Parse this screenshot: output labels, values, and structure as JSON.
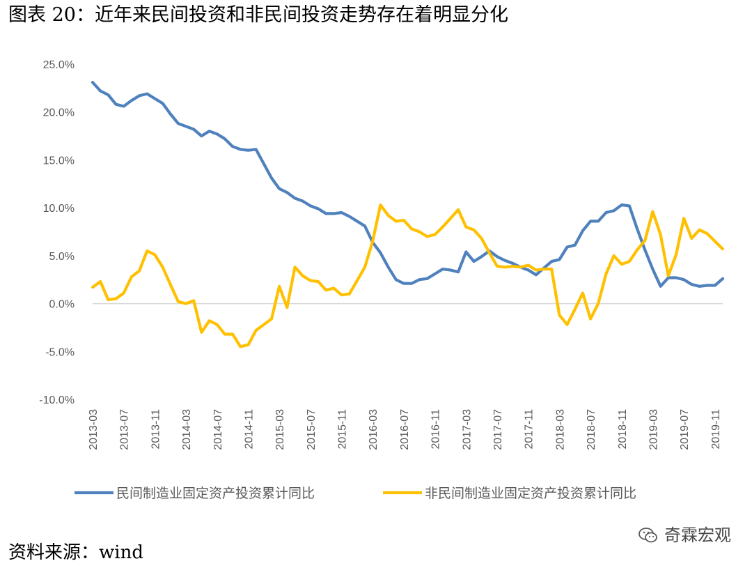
{
  "page": {
    "title": "图表 20：近年来民间投资和非民间投资走势存在着明显分化",
    "source": "资料来源：wind",
    "watermark": "奇霖宏观"
  },
  "chart_data": {
    "type": "line",
    "title": "",
    "xlabel": "",
    "ylabel": "",
    "ylim": [
      -10,
      25
    ],
    "y_ticks": [
      "25.0%",
      "20.0%",
      "15.0%",
      "10.0%",
      "5.0%",
      "0.0%",
      "-5.0%",
      "-10.0%"
    ],
    "x_tick_labels": [
      "2013-03",
      "2013-07",
      "2013-11",
      "2014-03",
      "2014-07",
      "2014-11",
      "2015-03",
      "2015-07",
      "2015-11",
      "2016-03",
      "2016-07",
      "2016-11",
      "2017-03",
      "2017-07",
      "2017-11",
      "2018-03",
      "2018-07",
      "2018-11",
      "2019-03",
      "2019-07",
      "2019-11"
    ],
    "x": [
      "2013-03",
      "2013-04",
      "2013-05",
      "2013-06",
      "2013-07",
      "2013-08",
      "2013-09",
      "2013-10",
      "2013-11",
      "2013-12",
      "2014-01",
      "2014-02",
      "2014-03",
      "2014-04",
      "2014-05",
      "2014-06",
      "2014-07",
      "2014-08",
      "2014-09",
      "2014-10",
      "2014-11",
      "2014-12",
      "2015-01",
      "2015-02",
      "2015-03",
      "2015-04",
      "2015-05",
      "2015-06",
      "2015-07",
      "2015-08",
      "2015-09",
      "2015-10",
      "2015-11",
      "2015-12",
      "2016-01",
      "2016-02",
      "2016-03",
      "2016-04",
      "2016-05",
      "2016-06",
      "2016-07",
      "2016-08",
      "2016-09",
      "2016-10",
      "2016-11",
      "2016-12",
      "2017-01",
      "2017-02",
      "2017-03",
      "2017-04",
      "2017-05",
      "2017-06",
      "2017-07",
      "2017-08",
      "2017-09",
      "2017-10",
      "2017-11",
      "2017-12",
      "2018-01",
      "2018-02",
      "2018-03",
      "2018-04",
      "2018-05",
      "2018-06",
      "2018-07",
      "2018-08",
      "2018-09",
      "2018-10",
      "2018-11",
      "2018-12",
      "2019-01",
      "2019-02",
      "2019-03",
      "2019-04",
      "2019-05",
      "2019-06",
      "2019-07",
      "2019-08",
      "2019-09",
      "2019-10",
      "2019-11",
      "2019-12"
    ],
    "series": [
      {
        "name": "民间制造业固定资产投资累计同比",
        "color": "#4f81bd",
        "values": [
          23.1,
          22.2,
          21.8,
          20.8,
          20.6,
          21.2,
          21.7,
          21.9,
          21.4,
          20.9,
          19.8,
          18.8,
          18.5,
          18.2,
          17.5,
          18.0,
          17.7,
          17.2,
          16.4,
          16.1,
          16.0,
          16.1,
          14.6,
          13.1,
          12.0,
          11.6,
          11.0,
          10.7,
          10.2,
          9.9,
          9.4,
          9.4,
          9.5,
          9.1,
          8.6,
          8.1,
          6.4,
          5.3,
          3.8,
          2.5,
          2.1,
          2.1,
          2.5,
          2.6,
          3.1,
          3.6,
          3.5,
          3.3,
          5.4,
          4.4,
          4.9,
          5.5,
          4.9,
          4.5,
          4.2,
          3.8,
          3.5,
          3.0,
          3.7,
          4.4,
          4.6,
          5.9,
          6.1,
          7.6,
          8.6,
          8.6,
          9.5,
          9.7,
          10.3,
          10.2,
          7.8,
          5.6,
          3.6,
          1.8,
          2.7,
          2.7,
          2.5,
          2.0,
          1.8,
          1.9,
          1.9,
          2.6
        ]
      },
      {
        "name": "非民间制造业固定资产投资累计同比",
        "color": "#ffc000",
        "values": [
          1.7,
          2.3,
          0.4,
          0.5,
          1.1,
          2.8,
          3.4,
          5.5,
          5.1,
          3.8,
          2.0,
          0.2,
          0.0,
          0.3,
          -3.0,
          -1.8,
          -2.2,
          -3.2,
          -3.2,
          -4.5,
          -4.3,
          -2.8,
          -2.2,
          -1.6,
          1.8,
          -0.4,
          3.8,
          2.9,
          2.4,
          2.3,
          1.4,
          1.6,
          0.9,
          1.0,
          2.4,
          3.8,
          6.5,
          10.3,
          9.2,
          8.6,
          8.7,
          7.8,
          7.5,
          7.0,
          7.2,
          8.0,
          8.9,
          9.8,
          8.0,
          7.7,
          6.8,
          5.3,
          3.9,
          3.8,
          3.9,
          3.8,
          4.0,
          3.5,
          3.6,
          3.6,
          -1.2,
          -2.2,
          -0.6,
          1.1,
          -1.6,
          0.0,
          3.1,
          5.0,
          4.1,
          4.4,
          5.6,
          6.6,
          9.6,
          7.2,
          2.9,
          5.1,
          8.9,
          6.8,
          7.7,
          7.3,
          6.5,
          5.7
        ]
      }
    ],
    "legend_position": "bottom",
    "grid": false
  }
}
